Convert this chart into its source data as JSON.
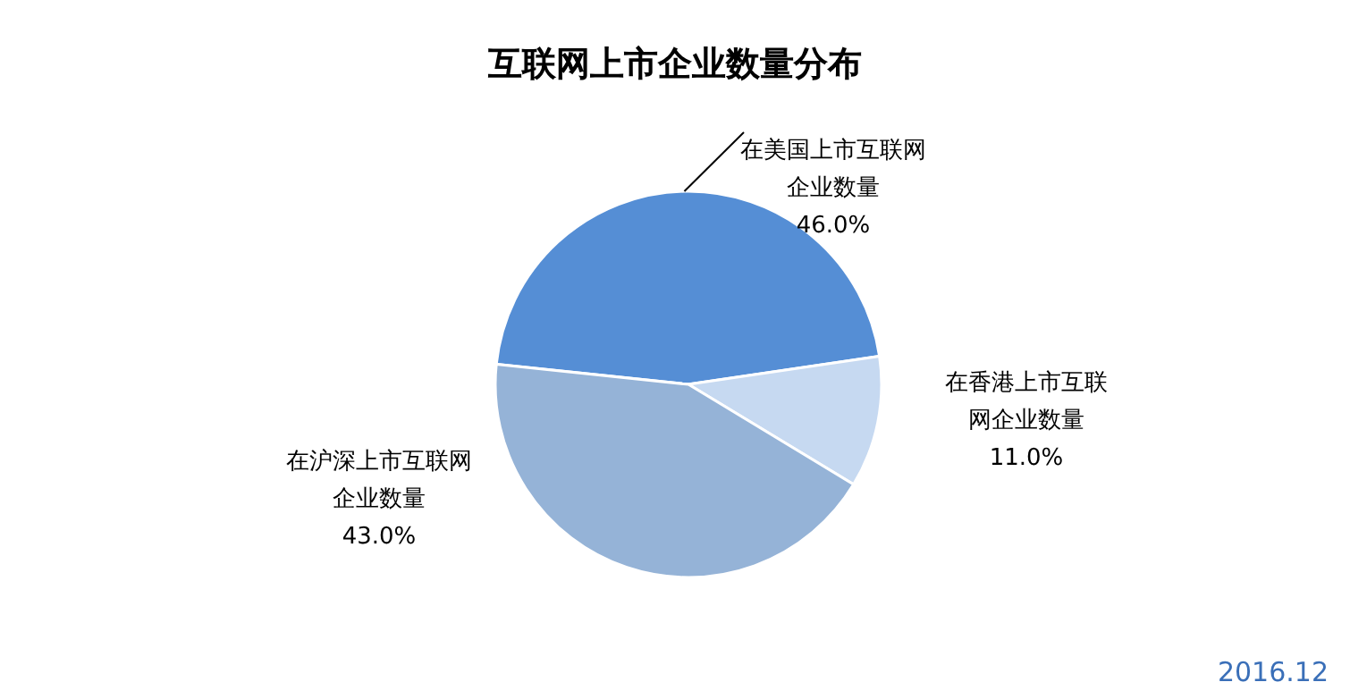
{
  "chart_data": {
    "type": "pie",
    "title": "互联网上市企业数量分布",
    "categories": [
      "在美国上市互联网企业数量",
      "在香港上市互联网企业数量",
      "在沪深上市互联网企业数量"
    ],
    "values": [
      46.0,
      11.0,
      43.0
    ],
    "value_labels": [
      "46.0%",
      "11.0%",
      "43.0%"
    ],
    "colors": [
      "#558ed5",
      "#c6d9f1",
      "#95b3d7"
    ],
    "annotations": [
      "2016.12"
    ]
  }
}
